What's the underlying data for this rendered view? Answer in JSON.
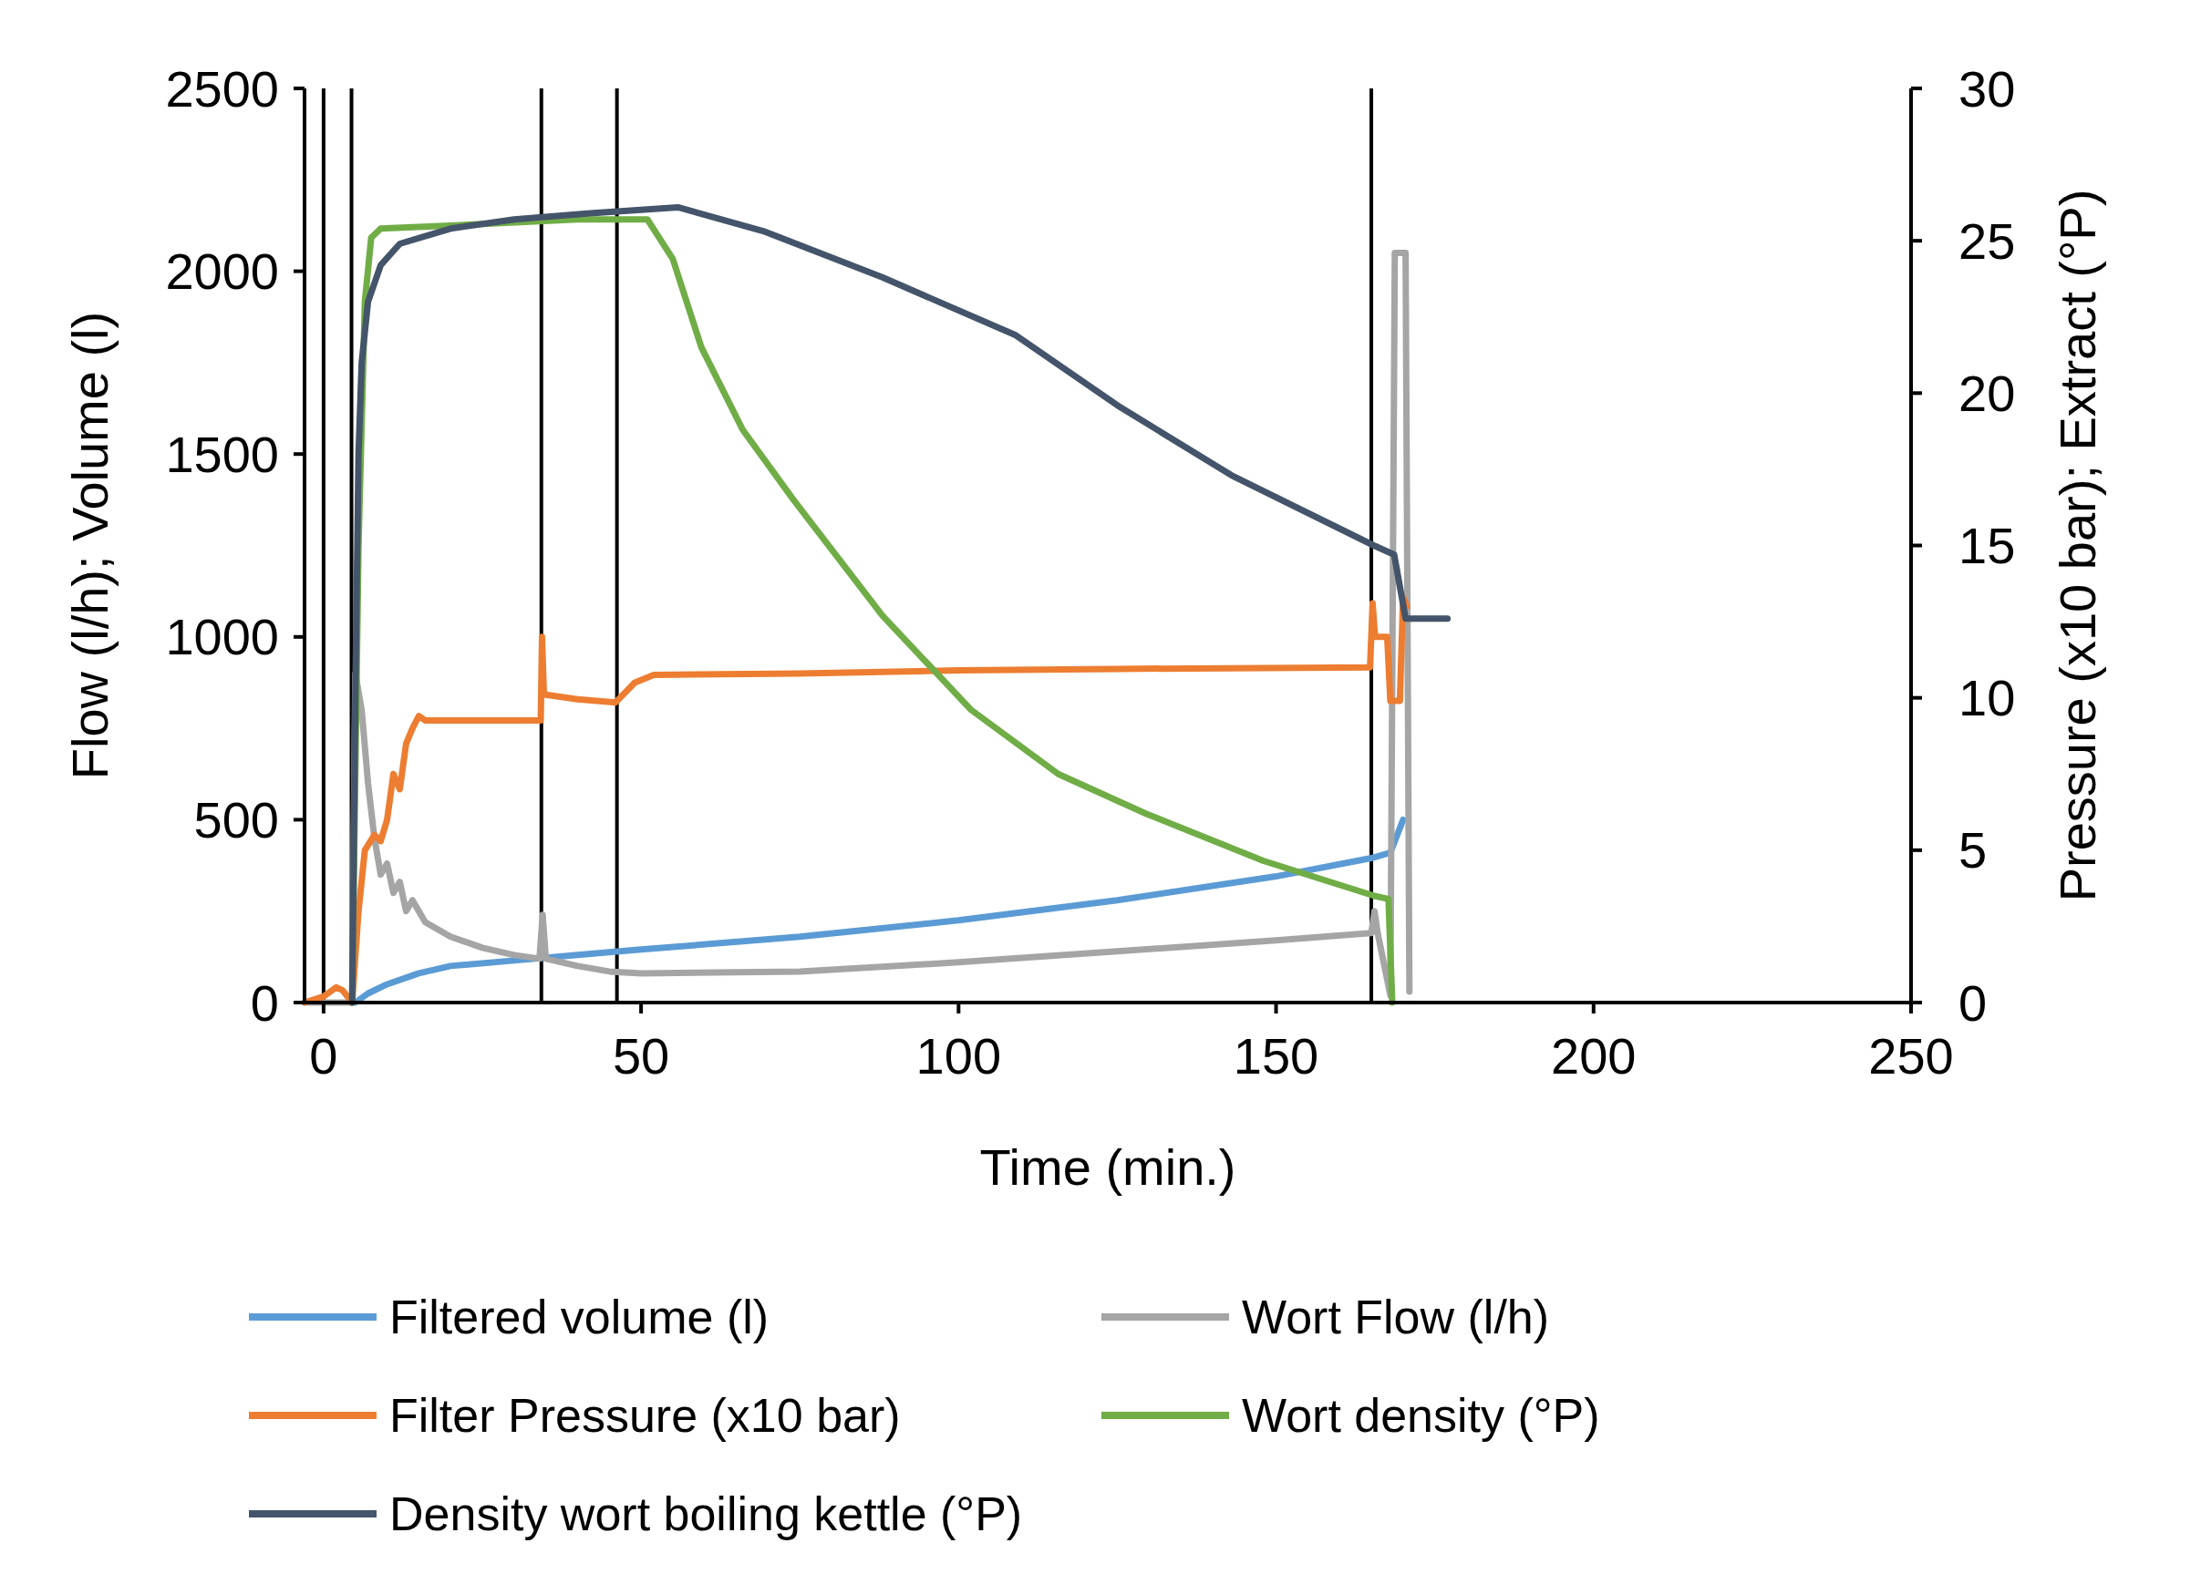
{
  "chart_data": {
    "type": "line",
    "xlabel": "Time (min.)",
    "ylabel": "Flow (l/h); Volume (l)",
    "y2label": "Pressure (x10 bar); Extract (°P)",
    "xlim": [
      -3,
      250
    ],
    "xticks": [
      0,
      50,
      100,
      150,
      200,
      250
    ],
    "ylim": [
      0,
      2500
    ],
    "yticks": [
      0,
      500,
      1000,
      1500,
      2000,
      2500
    ],
    "y2lim": [
      0,
      30
    ],
    "y2ticks": [
      0,
      5,
      10,
      15,
      20,
      25,
      30
    ],
    "grid": false,
    "legend": "bottom",
    "marker": "none",
    "line_style": "solid",
    "ref_lines": [
      {
        "axis": "x",
        "value": 0,
        "color": "#000000"
      },
      {
        "axis": "x",
        "value": 4.4,
        "color": "#000000"
      },
      {
        "axis": "x",
        "value": 34.3,
        "color": "#000000"
      },
      {
        "axis": "x",
        "value": 46.2,
        "color": "#000000"
      },
      {
        "axis": "x",
        "value": 165,
        "color": "#000000"
      }
    ],
    "series": [
      {
        "name": "Filtered volume (l)",
        "color": "#5b9bd5",
        "x": [
          5,
          7,
          10,
          15,
          20,
          30,
          40,
          50,
          75,
          100,
          125,
          150,
          165,
          168,
          170
        ],
        "values": [
          0,
          25,
          50,
          80,
          100,
          115,
          130,
          145,
          180,
          225,
          280,
          345,
          395,
          410,
          500
        ]
      },
      {
        "name": "Wort Flow (l/h)",
        "color": "#a5a5a5",
        "x": [
          -3,
          4.5,
          5,
          6,
          7,
          8,
          9,
          10,
          11,
          12,
          13,
          14,
          16,
          20,
          25,
          30,
          34,
          34.5,
          35,
          40,
          45,
          50,
          75,
          100,
          125,
          150,
          165,
          165.5,
          166,
          168,
          168.7,
          170.4,
          171
        ],
        "values": [
          0,
          0,
          900,
          800,
          600,
          450,
          350,
          380,
          300,
          330,
          250,
          280,
          220,
          180,
          150,
          130,
          120,
          240,
          120,
          100,
          85,
          80,
          85,
          110,
          140,
          170,
          190,
          250,
          190,
          20,
          2050,
          2050,
          30
        ]
      },
      {
        "name": "Filter Pressure (x10 bar)",
        "color": "#ed7d31",
        "axis": "y2",
        "x": [
          -3,
          0,
          2,
          3,
          4.5,
          5.5,
          6.5,
          8,
          9,
          10,
          11,
          12,
          13,
          14,
          15,
          16,
          34.2,
          34.4,
          34.7,
          35,
          40,
          46,
          49,
          52,
          75,
          100,
          125,
          164.8,
          165.2,
          165.6,
          166.2,
          167.5,
          168,
          169.5,
          170,
          170.6
        ],
        "values": [
          0,
          0.2,
          0.5,
          0.4,
          0,
          3,
          5,
          5.5,
          5.3,
          6,
          7.5,
          7,
          8.5,
          9,
          9.4,
          9.26,
          9.26,
          12,
          10.1,
          10.1,
          9.95,
          9.85,
          10.5,
          10.75,
          10.8,
          10.9,
          10.95,
          11,
          13.1,
          12,
          12,
          12,
          9.9,
          9.9,
          13.3,
          13
        ]
      },
      {
        "name": "Wort density (°P)",
        "color": "#70ad47",
        "axis": "y2",
        "x": [
          4.5,
          5.5,
          6.5,
          7.5,
          9,
          20,
          40,
          51,
          55,
          59.5,
          66,
          74,
          88,
          102,
          115.7,
          129.5,
          148,
          165.5,
          167.7,
          168.3
        ],
        "values": [
          0,
          15,
          23,
          25.1,
          25.4,
          25.5,
          25.7,
          25.7,
          24.4,
          21.5,
          18.8,
          16.5,
          12.7,
          9.6,
          7.5,
          6.2,
          4.65,
          3.5,
          3.4,
          0
        ]
      },
      {
        "name": "Density wort boiling kettle (°P)",
        "color": "#44546a",
        "axis": "y2",
        "x": [
          4.5,
          5,
          5.5,
          6,
          7,
          9,
          12,
          20,
          30,
          42,
          55.8,
          69.5,
          88,
          109,
          125,
          143,
          165.4,
          168.6,
          170.4,
          177
        ],
        "values": [
          0,
          10,
          18,
          21,
          23,
          24.2,
          24.9,
          25.4,
          25.7,
          25.9,
          26.1,
          25.3,
          23.8,
          21.9,
          19.6,
          17.3,
          15,
          14.7,
          12.6,
          12.6
        ]
      }
    ]
  }
}
